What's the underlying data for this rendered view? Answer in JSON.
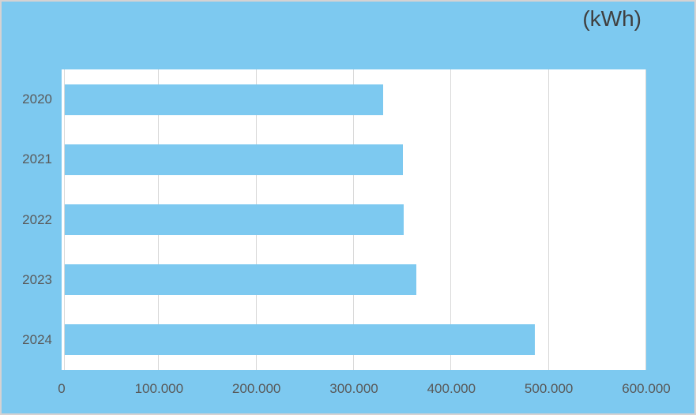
{
  "chart_data": {
    "type": "bar",
    "orientation": "horizontal",
    "title": "(kWh)",
    "categories": [
      "2020",
      "2021",
      "2022",
      "2023",
      "2024"
    ],
    "values": [
      330000,
      350000,
      351000,
      364000,
      486000
    ],
    "xlim": [
      0,
      600000
    ],
    "x_ticks": [
      {
        "value": 0,
        "label": "0"
      },
      {
        "value": 100000,
        "label": "100.000"
      },
      {
        "value": 200000,
        "label": "200.000"
      },
      {
        "value": 300000,
        "label": "300.000"
      },
      {
        "value": 400000,
        "label": "400.000"
      },
      {
        "value": 500000,
        "label": "500.000"
      },
      {
        "value": 600000,
        "label": "600.000"
      }
    ],
    "grid": "vertical-gridlines-on",
    "legend": "none",
    "xlabel": "",
    "ylabel": ""
  },
  "colors": {
    "background": "#7dc9f0",
    "bar": "#7dc9f0",
    "plot_background": "#ffffff",
    "gridline": "#d9d9d9",
    "title_text": "#404040",
    "tick_text": "#595959",
    "border": "#d5d2d2"
  }
}
